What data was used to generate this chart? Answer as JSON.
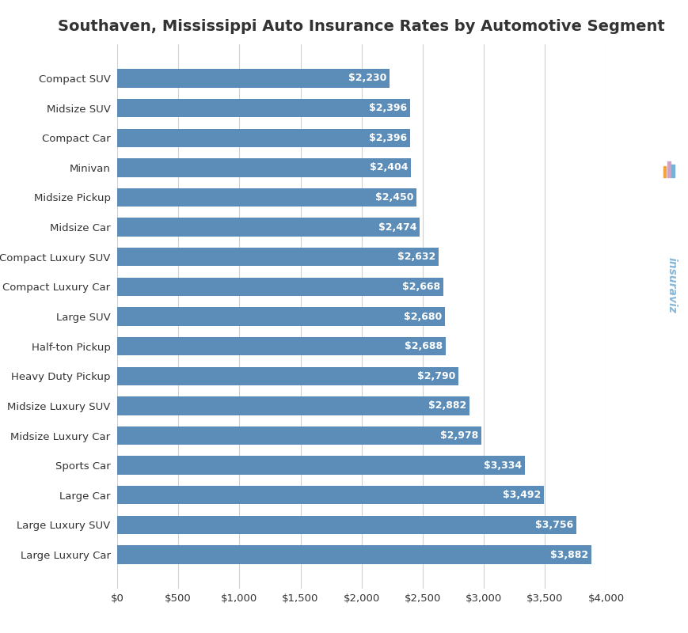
{
  "title": "Southaven, Mississippi Auto Insurance Rates by Automotive Segment",
  "categories": [
    "Compact SUV",
    "Midsize SUV",
    "Compact Car",
    "Minivan",
    "Midsize Pickup",
    "Midsize Car",
    "Compact Luxury SUV",
    "Compact Luxury Car",
    "Large SUV",
    "Half-ton Pickup",
    "Heavy Duty Pickup",
    "Midsize Luxury SUV",
    "Midsize Luxury Car",
    "Sports Car",
    "Large Car",
    "Large Luxury SUV",
    "Large Luxury Car"
  ],
  "values": [
    2230,
    2396,
    2396,
    2404,
    2450,
    2474,
    2632,
    2668,
    2680,
    2688,
    2790,
    2882,
    2978,
    3334,
    3492,
    3756,
    3882
  ],
  "bar_color": "#5b8db8",
  "label_color": "#ffffff",
  "background_color": "#ffffff",
  "grid_color": "#d0d0d0",
  "title_fontsize": 14,
  "ytick_fontsize": 9.5,
  "xtick_fontsize": 9.5,
  "value_fontsize": 9,
  "xlim": [
    0,
    4000
  ],
  "xticks": [
    0,
    500,
    1000,
    1500,
    2000,
    2500,
    3000,
    3500,
    4000
  ],
  "xtick_labels": [
    "$0",
    "$500",
    "$1,000",
    "$1,500",
    "$2,000",
    "$2,500",
    "$3,000",
    "$3,500",
    "$4,000"
  ],
  "watermark_text": "insuraviz",
  "watermark_color_main": "#7ab0d4",
  "watermark_icon_colors": [
    "#f4a340",
    "#d4a0c8",
    "#7ab0d4"
  ]
}
